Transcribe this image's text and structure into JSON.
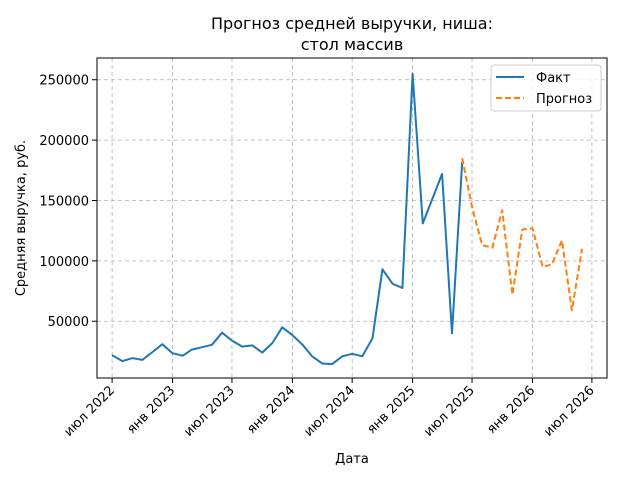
{
  "chart_data": {
    "type": "line",
    "title_lines": [
      "Прогноз средней выручки, ниша:",
      "стол массив"
    ],
    "xlabel": "Дата",
    "ylabel": "Средняя выручка, руб.",
    "ylim": [
      3000,
      268000
    ],
    "xlim": [
      "2022-05-16",
      "2026-08-16"
    ],
    "grid": true,
    "legend_position": "top-right",
    "yticks": [
      50000,
      100000,
      150000,
      200000,
      250000
    ],
    "xticks": [
      {
        "date": "2022-07-01",
        "label": "июл 2022"
      },
      {
        "date": "2023-01-01",
        "label": "янв 2023"
      },
      {
        "date": "2023-07-01",
        "label": "июл 2023"
      },
      {
        "date": "2024-01-01",
        "label": "янв 2024"
      },
      {
        "date": "2024-07-01",
        "label": "июл 2024"
      },
      {
        "date": "2025-01-01",
        "label": "янв 2025"
      },
      {
        "date": "2025-07-01",
        "label": "июл 2025"
      },
      {
        "date": "2026-01-01",
        "label": "янв 2026"
      },
      {
        "date": "2026-07-01",
        "label": "июл 2026"
      }
    ],
    "series": [
      {
        "name": "Факт",
        "color": "#1f77b4",
        "style": "solid",
        "points": [
          {
            "x": "2022-07-01",
            "y": 22000
          },
          {
            "x": "2022-08-01",
            "y": 17000
          },
          {
            "x": "2022-09-01",
            "y": 19500
          },
          {
            "x": "2022-10-01",
            "y": 18000
          },
          {
            "x": "2022-11-01",
            "y": 24500
          },
          {
            "x": "2022-12-01",
            "y": 31000
          },
          {
            "x": "2023-01-01",
            "y": 23500
          },
          {
            "x": "2023-02-01",
            "y": 21500
          },
          {
            "x": "2023-03-01",
            "y": 26500
          },
          {
            "x": "2023-04-01",
            "y": 28500
          },
          {
            "x": "2023-05-01",
            "y": 30500
          },
          {
            "x": "2023-06-01",
            "y": 40500
          },
          {
            "x": "2023-07-01",
            "y": 34000
          },
          {
            "x": "2023-08-01",
            "y": 29000
          },
          {
            "x": "2023-09-01",
            "y": 30000
          },
          {
            "x": "2023-10-01",
            "y": 24000
          },
          {
            "x": "2023-11-01",
            "y": 32000
          },
          {
            "x": "2023-12-01",
            "y": 45000
          },
          {
            "x": "2024-01-01",
            "y": 38500
          },
          {
            "x": "2024-02-01",
            "y": 30500
          },
          {
            "x": "2024-03-01",
            "y": 21000
          },
          {
            "x": "2024-04-01",
            "y": 15000
          },
          {
            "x": "2024-05-01",
            "y": 14500
          },
          {
            "x": "2024-06-01",
            "y": 21000
          },
          {
            "x": "2024-07-01",
            "y": 23000
          },
          {
            "x": "2024-08-01",
            "y": 21000
          },
          {
            "x": "2024-09-01",
            "y": 36000
          },
          {
            "x": "2024-10-01",
            "y": 93000
          },
          {
            "x": "2024-11-01",
            "y": 81000
          },
          {
            "x": "2024-12-01",
            "y": 77500
          },
          {
            "x": "2025-01-01",
            "y": 255000
          },
          {
            "x": "2025-02-01",
            "y": 131000
          },
          {
            "x": "2025-04-01",
            "y": 172000
          },
          {
            "x": "2025-05-01",
            "y": 40000
          },
          {
            "x": "2025-06-01",
            "y": 182000
          }
        ]
      },
      {
        "name": "Прогноз",
        "color": "#ff7f0e",
        "style": "dashed",
        "points": [
          {
            "x": "2025-06-01",
            "y": 185000
          },
          {
            "x": "2025-07-01",
            "y": 145000
          },
          {
            "x": "2025-08-01",
            "y": 113000
          },
          {
            "x": "2025-09-01",
            "y": 111000
          },
          {
            "x": "2025-10-01",
            "y": 142000
          },
          {
            "x": "2025-11-01",
            "y": 72000
          },
          {
            "x": "2025-12-01",
            "y": 126000
          },
          {
            "x": "2026-01-01",
            "y": 127000
          },
          {
            "x": "2026-02-01",
            "y": 95000
          },
          {
            "x": "2026-03-01",
            "y": 97000
          },
          {
            "x": "2026-04-01",
            "y": 117000
          },
          {
            "x": "2026-05-01",
            "y": 59000
          },
          {
            "x": "2026-06-01",
            "y": 110000
          }
        ]
      }
    ]
  }
}
